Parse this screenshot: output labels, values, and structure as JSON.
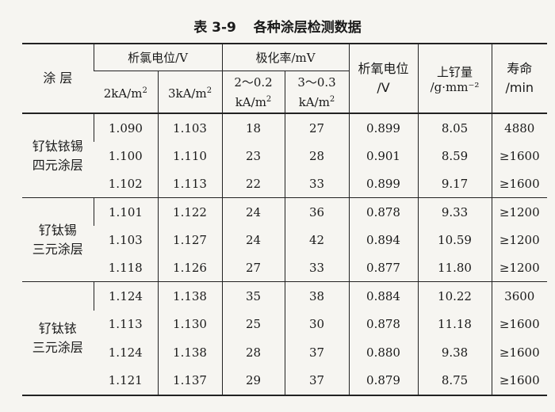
{
  "title": {
    "number": "表 3-9",
    "text": "各种涂层检测数据"
  },
  "headers": {
    "coating": "涂 层",
    "cl_potential": "析氯电位/V",
    "cl_2ka": "2kA/m²",
    "cl_3ka": "3kA/m²",
    "polarization": "极化率/mV",
    "pol_a": "2～0.2 kA/m²",
    "pol_b": "3～0.3 kA/m²",
    "o2_potential": "析氧电位 /V",
    "ru_loading": "上钌量 /g·mm⁻²",
    "life": "寿命 /min"
  },
  "groups": [
    {
      "name": "钌钛铱锡四元涂层",
      "name_l1": "钌钛铱锡",
      "name_l2": "四元涂层",
      "rows": [
        [
          "1.090",
          "1.103",
          "18",
          "27",
          "0.899",
          "8.05",
          "4880"
        ],
        [
          "1.100",
          "1.110",
          "23",
          "28",
          "0.901",
          "8.59",
          "≥1600"
        ],
        [
          "1.102",
          "1.113",
          "22",
          "33",
          "0.899",
          "9.17",
          "≥1600"
        ]
      ]
    },
    {
      "name": "钌钛锡三元涂层",
      "name_l1": "钌钛锡",
      "name_l2": "三元涂层",
      "rows": [
        [
          "1.101",
          "1.122",
          "24",
          "36",
          "0.878",
          "9.33",
          "≥1200"
        ],
        [
          "1.103",
          "1.127",
          "24",
          "42",
          "0.894",
          "10.59",
          "≥1200"
        ],
        [
          "1.118",
          "1.126",
          "27",
          "33",
          "0.877",
          "11.80",
          "≥1200"
        ]
      ]
    },
    {
      "name": "钌钛铱三元涂层",
      "name_l1": "钌钛铱",
      "name_l2": "三元涂层",
      "rows": [
        [
          "1.124",
          "1.138",
          "35",
          "38",
          "0.884",
          "10.22",
          "3600"
        ],
        [
          "1.113",
          "1.130",
          "25",
          "30",
          "0.878",
          "11.18",
          "≥1600"
        ],
        [
          "1.124",
          "1.138",
          "28",
          "37",
          "0.880",
          "9.38",
          "≥1600"
        ],
        [
          "1.121",
          "1.137",
          "29",
          "37",
          "0.879",
          "8.75",
          "≥1600"
        ]
      ]
    }
  ]
}
